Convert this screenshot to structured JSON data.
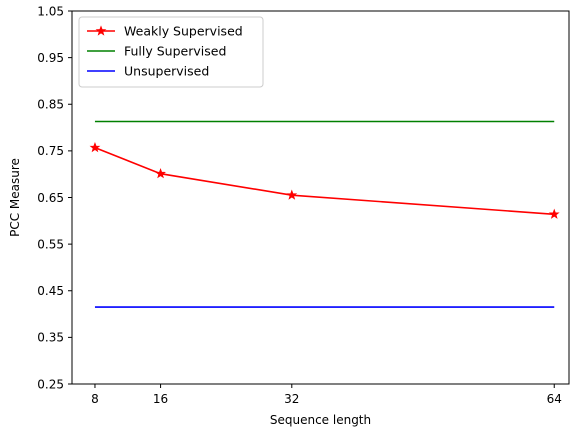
{
  "chart_data": {
    "type": "line",
    "xlabel": "Sequence length",
    "ylabel": "PCC Measure",
    "x": [
      8,
      16,
      32,
      64
    ],
    "x_ticks": [
      "8",
      "16",
      "32",
      "64"
    ],
    "xlim": [
      5.2,
      65.8
    ],
    "ylim": [
      0.25,
      1.05
    ],
    "y_ticks": [
      "0.25",
      "0.35",
      "0.45",
      "0.55",
      "0.65",
      "0.75",
      "0.85",
      "0.95",
      "1.05"
    ],
    "grid": false,
    "legend_position": "upper-left",
    "series": [
      {
        "name": "Weakly Supervised",
        "color": "#ff0000",
        "marker": "star",
        "values": [
          0.757,
          0.701,
          0.655,
          0.614
        ]
      },
      {
        "name": "Fully Supervised",
        "color": "#008000",
        "marker": "none",
        "values": [
          0.813,
          0.813,
          0.813,
          0.813
        ]
      },
      {
        "name": "Unsupervised",
        "color": "#0000ff",
        "marker": "none",
        "values": [
          0.415,
          0.415,
          0.415,
          0.415
        ]
      }
    ]
  }
}
